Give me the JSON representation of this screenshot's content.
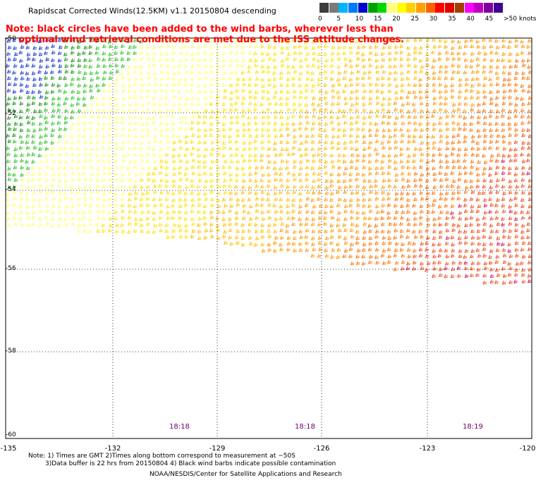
{
  "title": "Rapidscat Corrected Winds(12.5KM) v1.1 20150804 descending",
  "note": {
    "line1": "Note: black circles have been added to the wind barbs, wherever less than",
    "line2": "optimal wind retrieval conditions are met due to the ISS attitude changes."
  },
  "color_scale": {
    "labels": [
      "0",
      "5",
      "10",
      "15",
      "20",
      "25",
      "30",
      "35",
      "40",
      "45",
      ">50 knots"
    ],
    "colors": [
      "#3c3c3c",
      "#7a7a7a",
      "#00b4ff",
      "#0078ff",
      "#0000d0",
      "#00a000",
      "#00d800",
      "#ffff80",
      "#ffff00",
      "#ffd000",
      "#ffa000",
      "#ff6000",
      "#ff0000",
      "#e00000",
      "#a04000",
      "#ff00ff",
      "#c000c0",
      "#8000a0",
      "#400090"
    ]
  },
  "map": {
    "lat_labels": [
      "-50",
      "-52",
      "-54",
      "-56",
      "-58",
      "-60"
    ],
    "lon_labels": [
      "-135",
      "-132",
      "-129",
      "-126",
      "-123",
      "-120"
    ],
    "lon_range": [
      -135,
      -120
    ],
    "lat_range": [
      -60,
      -50
    ]
  },
  "time_labels": [
    "18:18",
    "18:18",
    "18:19"
  ],
  "footnote": {
    "line1": "Note: 1) Times are GMT 2)Times along bottom correspond to measurement at ~50S",
    "line2": "3)Data buffer is 22 hrs from 20150804 4) Black wind barbs indicate possible contamination"
  },
  "credit": "NOAA/NESDIS/Center for Satellite Applications and Research"
}
